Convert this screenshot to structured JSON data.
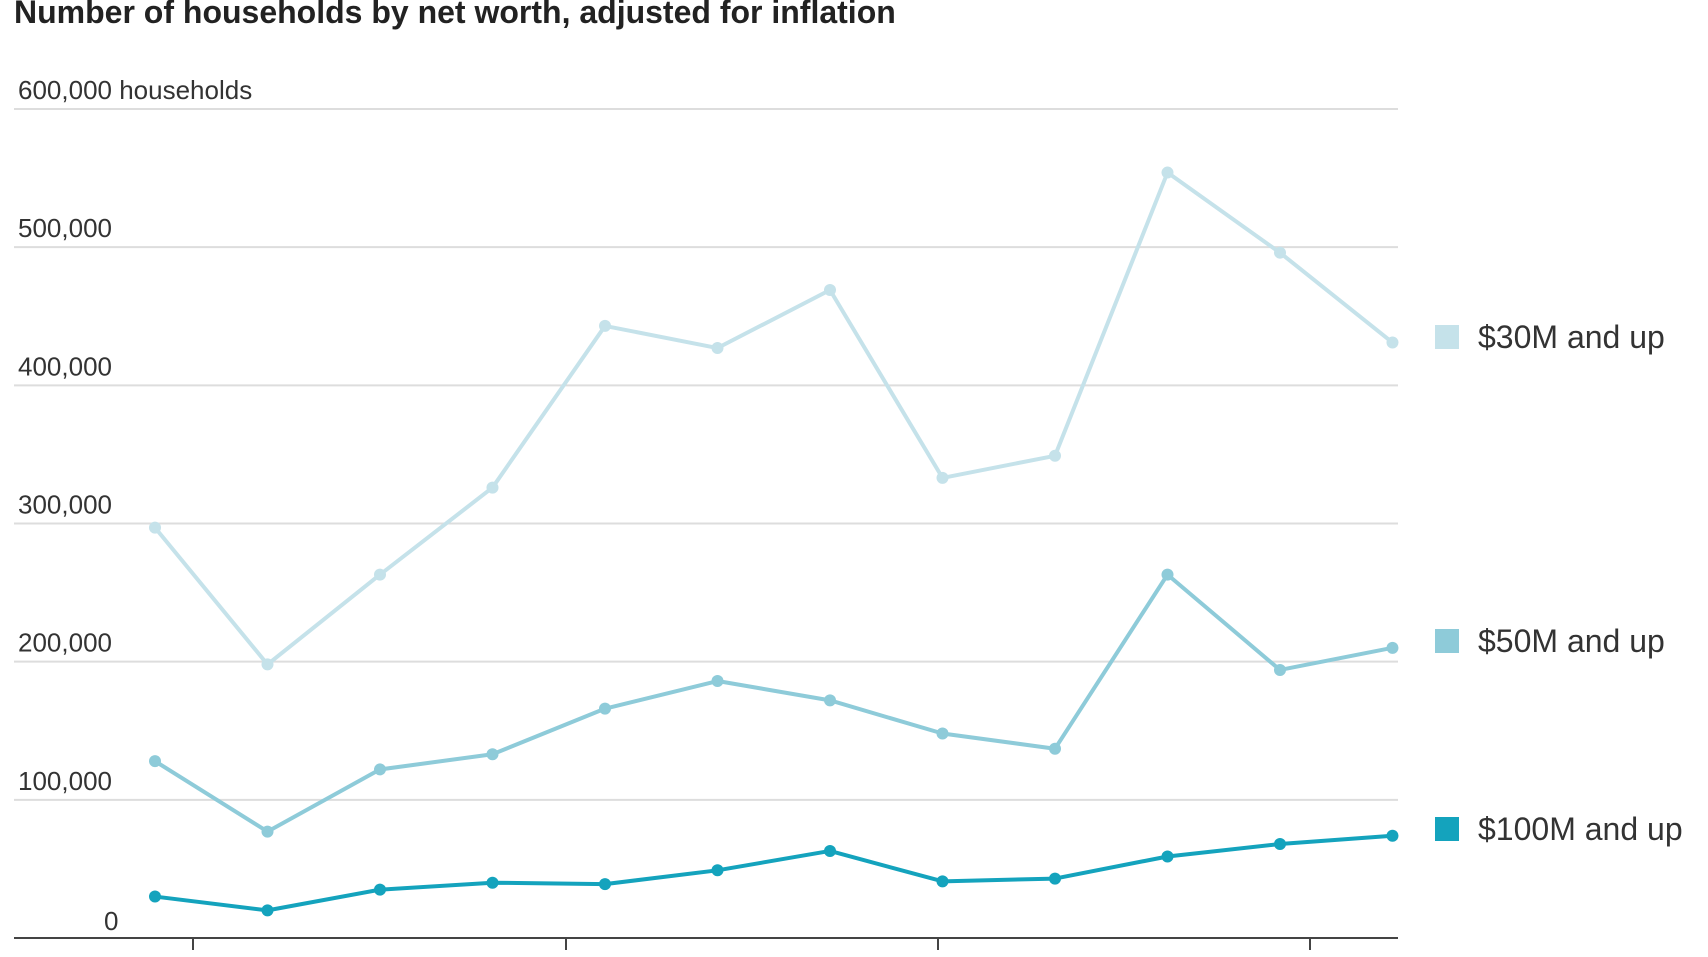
{
  "title": "Number of households by net worth, adjusted for inflation",
  "chart_data": {
    "type": "line",
    "title": "Number of households by net worth, adjusted for inflation",
    "ylabel": "",
    "y_unit_label": "households",
    "ylim": [
      0,
      600000
    ],
    "yticks": [
      0,
      100000,
      200000,
      300000,
      400000,
      500000,
      600000
    ],
    "ytick_labels": [
      "0",
      "100,000",
      "200,000",
      "300,000",
      "400,000",
      "500,000",
      "600,000 households"
    ],
    "x": [
      0,
      1,
      2,
      3,
      4,
      5,
      6,
      7,
      8,
      9,
      10,
      11
    ],
    "x_tick_labels": [],
    "grid": true,
    "legend_position": "right",
    "series": [
      {
        "name": "$30M and up",
        "color": "#c5e2ea",
        "values": [
          297000,
          198000,
          263000,
          326000,
          443000,
          427000,
          469000,
          333000,
          349000,
          554000,
          496000,
          431000
        ]
      },
      {
        "name": "$50M and up",
        "color": "#8ecbd9",
        "values": [
          128000,
          77000,
          122000,
          133000,
          166000,
          186000,
          172000,
          148000,
          137000,
          263000,
          194000,
          210000
        ]
      },
      {
        "name": "$100M and up",
        "color": "#14a3bd",
        "values": [
          30000,
          20000,
          35000,
          40000,
          39000,
          49000,
          63000,
          41000,
          43000,
          59000,
          68000,
          74000
        ]
      }
    ]
  }
}
